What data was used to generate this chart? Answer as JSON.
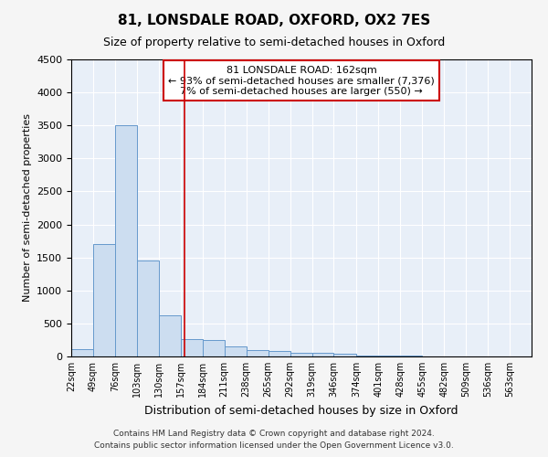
{
  "title": "81, LONSDALE ROAD, OXFORD, OX2 7ES",
  "subtitle": "Size of property relative to semi-detached houses in Oxford",
  "xlabel": "Distribution of semi-detached houses by size in Oxford",
  "ylabel": "Number of semi-detached properties",
  "property_size": 162,
  "property_label": "81 LONSDALE ROAD: 162sqm",
  "pct_smaller": 93,
  "count_smaller": 7376,
  "pct_larger": 7,
  "count_larger": 550,
  "bin_labels": [
    "22sqm",
    "49sqm",
    "76sqm",
    "103sqm",
    "130sqm",
    "157sqm",
    "184sqm",
    "211sqm",
    "238sqm",
    "265sqm",
    "292sqm",
    "319sqm",
    "346sqm",
    "374sqm",
    "401sqm",
    "428sqm",
    "455sqm",
    "482sqm",
    "509sqm",
    "536sqm",
    "563sqm"
  ],
  "bin_edges": [
    22,
    49,
    76,
    103,
    130,
    157,
    184,
    211,
    238,
    265,
    292,
    319,
    346,
    374,
    401,
    428,
    455,
    482,
    509,
    536,
    563,
    590
  ],
  "bar_values": [
    110,
    1700,
    3500,
    1450,
    620,
    270,
    255,
    150,
    100,
    80,
    60,
    50,
    45,
    20,
    10,
    8,
    6,
    5,
    4,
    3,
    2
  ],
  "bar_color": "#ccddf0",
  "bar_edge_color": "#6699cc",
  "vline_x": 162,
  "vline_color": "#cc0000",
  "ylim": [
    0,
    4500
  ],
  "yticks": [
    0,
    500,
    1000,
    1500,
    2000,
    2500,
    3000,
    3500,
    4000,
    4500
  ],
  "annotation_box_color": "#cc0000",
  "bg_color": "#e8eff8",
  "grid_color": "#ffffff",
  "fig_bg_color": "#f5f5f5",
  "footer_text": "Contains HM Land Registry data © Crown copyright and database right 2024.\nContains public sector information licensed under the Open Government Licence v3.0."
}
